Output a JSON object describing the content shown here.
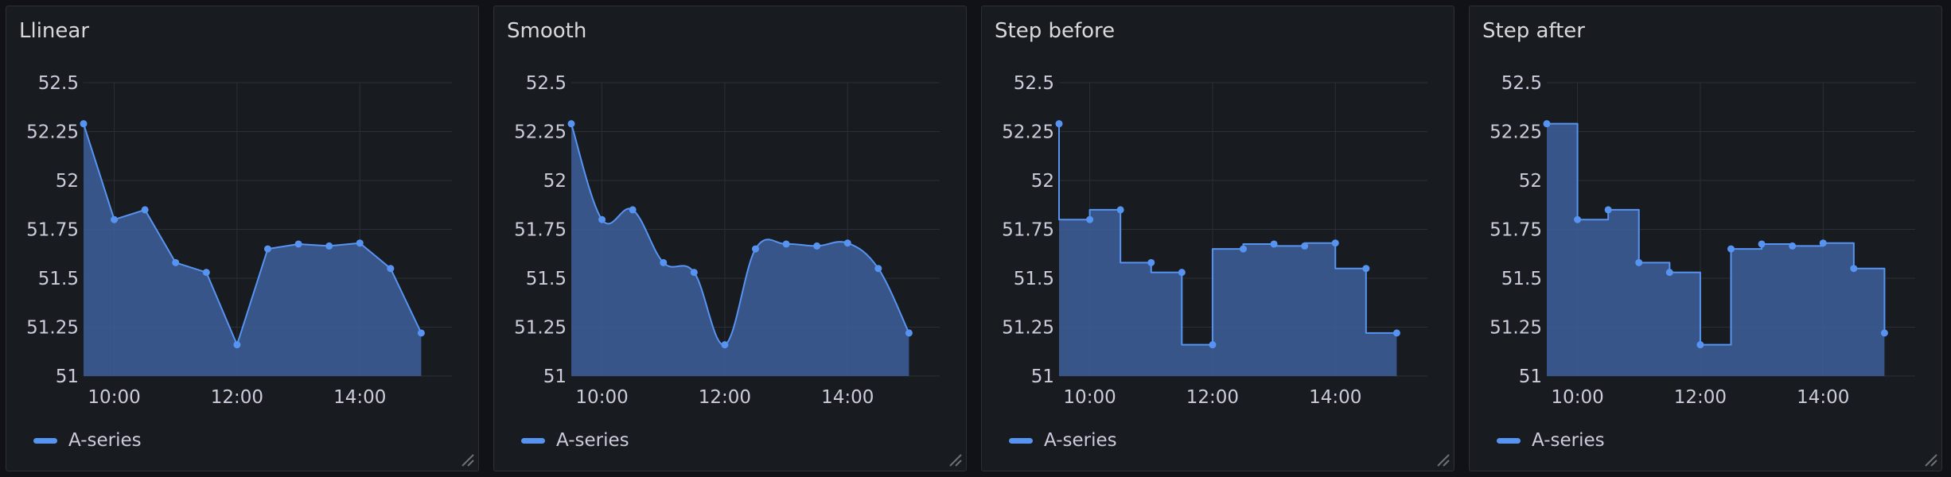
{
  "colors": {
    "series": "#5794f2",
    "fill": "#3d5f9b",
    "grid": "#2c2f35",
    "panel_bg": "#181b1f",
    "page_bg": "#111217"
  },
  "chart_data": [
    {
      "type": "line",
      "interpolation": "linear",
      "title": "Llinear",
      "xlabel": "",
      "ylabel": "",
      "x": [
        "09:30",
        "10:00",
        "10:30",
        "11:00",
        "11:30",
        "12:00",
        "12:30",
        "13:00",
        "13:30",
        "14:00",
        "14:30",
        "15:00"
      ],
      "series": [
        {
          "name": "A-series",
          "values": [
            52.29,
            51.8,
            51.85,
            51.58,
            51.53,
            51.16,
            51.65,
            51.675,
            51.665,
            51.68,
            51.55,
            51.22
          ]
        }
      ],
      "ylim": [
        51,
        52.5
      ],
      "yticks": [
        "52.5",
        "52.25",
        "52",
        "51.75",
        "51.5",
        "51.25",
        "51"
      ],
      "xticks": [
        "10:00",
        "12:00",
        "14:00"
      ],
      "grid": true,
      "legend": "bottom-left"
    },
    {
      "type": "line",
      "interpolation": "smooth",
      "title": "Smooth",
      "xlabel": "",
      "ylabel": "",
      "x": [
        "09:30",
        "10:00",
        "10:30",
        "11:00",
        "11:30",
        "12:00",
        "12:30",
        "13:00",
        "13:30",
        "14:00",
        "14:30",
        "15:00"
      ],
      "series": [
        {
          "name": "A-series",
          "values": [
            52.29,
            51.8,
            51.85,
            51.58,
            51.53,
            51.16,
            51.65,
            51.675,
            51.665,
            51.68,
            51.55,
            51.22
          ]
        }
      ],
      "ylim": [
        51,
        52.5
      ],
      "yticks": [
        "52.5",
        "52.25",
        "52",
        "51.75",
        "51.5",
        "51.25",
        "51"
      ],
      "xticks": [
        "10:00",
        "12:00",
        "14:00"
      ],
      "grid": true,
      "legend": "bottom-left"
    },
    {
      "type": "line",
      "interpolation": "step-before",
      "title": "Step before",
      "xlabel": "",
      "ylabel": "",
      "x": [
        "09:30",
        "10:00",
        "10:30",
        "11:00",
        "11:30",
        "12:00",
        "12:30",
        "13:00",
        "13:30",
        "14:00",
        "14:30",
        "15:00"
      ],
      "series": [
        {
          "name": "A-series",
          "values": [
            52.29,
            51.8,
            51.85,
            51.58,
            51.53,
            51.16,
            51.65,
            51.675,
            51.665,
            51.68,
            51.55,
            51.22
          ]
        }
      ],
      "ylim": [
        51,
        52.5
      ],
      "yticks": [
        "52.5",
        "52.25",
        "52",
        "51.75",
        "51.5",
        "51.25",
        "51"
      ],
      "xticks": [
        "10:00",
        "12:00",
        "14:00"
      ],
      "grid": true,
      "legend": "bottom-left"
    },
    {
      "type": "line",
      "interpolation": "step-after",
      "title": "Step after",
      "xlabel": "",
      "ylabel": "",
      "x": [
        "09:30",
        "10:00",
        "10:30",
        "11:00",
        "11:30",
        "12:00",
        "12:30",
        "13:00",
        "13:30",
        "14:00",
        "14:30",
        "15:00"
      ],
      "series": [
        {
          "name": "A-series",
          "values": [
            52.29,
            51.8,
            51.85,
            51.58,
            51.53,
            51.16,
            51.65,
            51.675,
            51.665,
            51.68,
            51.55,
            51.22
          ]
        }
      ],
      "ylim": [
        51,
        52.5
      ],
      "yticks": [
        "52.5",
        "52.25",
        "52",
        "51.75",
        "51.5",
        "51.25",
        "51"
      ],
      "xticks": [
        "10:00",
        "12:00",
        "14:00"
      ],
      "grid": true,
      "legend": "bottom-left"
    }
  ]
}
